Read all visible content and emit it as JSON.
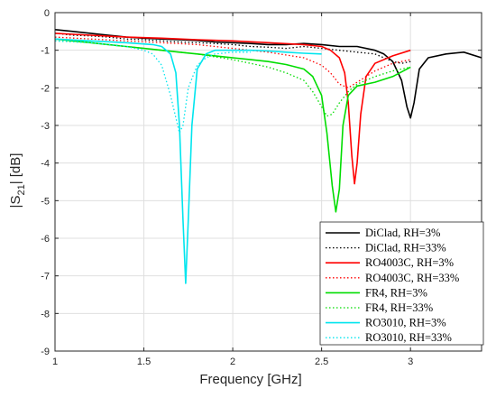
{
  "chart_data": {
    "type": "line",
    "xlabel": "Frequency [GHz]",
    "ylabel_main": "|S",
    "ylabel_sub": "21",
    "ylabel_tail": "| [dB]",
    "xlim": [
      1,
      3.4
    ],
    "ylim": [
      -9,
      0
    ],
    "xticks": [
      1,
      1.5,
      2,
      2.5,
      3
    ],
    "xtick_labels": [
      "1",
      "1.5",
      "2",
      "2.5",
      "3"
    ],
    "yticks": [
      0,
      -1,
      -2,
      -3,
      -4,
      -5,
      -6,
      -7,
      -8,
      -9
    ],
    "ytick_labels": [
      "0",
      "-1",
      "-2",
      "-3",
      "-4",
      "-5",
      "-6",
      "-7",
      "-8",
      "-9"
    ],
    "grid": true,
    "legend_position": "bottom-right",
    "series": [
      {
        "name": "DiClad, RH=3%",
        "color": "#000000",
        "dash": "solid",
        "x": [
          1.0,
          1.1,
          1.2,
          1.3,
          1.4,
          1.5,
          1.6,
          1.7,
          1.8,
          1.9,
          2.0,
          2.1,
          2.2,
          2.3,
          2.4,
          2.5,
          2.6,
          2.7,
          2.8,
          2.85,
          2.9,
          2.95,
          2.98,
          3.0,
          3.02,
          3.05,
          3.1,
          3.2,
          3.3,
          3.4
        ],
        "y": [
          -0.45,
          -0.5,
          -0.55,
          -0.6,
          -0.65,
          -0.68,
          -0.7,
          -0.72,
          -0.74,
          -0.78,
          -0.8,
          -0.82,
          -0.85,
          -0.85,
          -0.82,
          -0.85,
          -0.9,
          -0.9,
          -1.0,
          -1.1,
          -1.3,
          -1.8,
          -2.5,
          -2.8,
          -2.4,
          -1.5,
          -1.2,
          -1.1,
          -1.05,
          -1.2
        ]
      },
      {
        "name": "DiClad, RH=33%",
        "color": "#000000",
        "dash": "dotted",
        "x": [
          1.0,
          1.1,
          1.2,
          1.3,
          1.4,
          1.5,
          1.6,
          1.7,
          1.8,
          1.9,
          2.0,
          2.1,
          2.2,
          2.3,
          2.4,
          2.5,
          2.6,
          2.7,
          2.8,
          2.9,
          2.95,
          3.0
        ],
        "y": [
          -0.55,
          -0.6,
          -0.62,
          -0.65,
          -0.7,
          -0.72,
          -0.75,
          -0.78,
          -0.8,
          -0.82,
          -0.85,
          -0.9,
          -0.92,
          -0.95,
          -0.9,
          -0.95,
          -1.0,
          -1.05,
          -1.1,
          -1.3,
          -1.35,
          -1.3
        ]
      },
      {
        "name": "RO4003C, RH=3%",
        "color": "#ff0000",
        "dash": "solid",
        "x": [
          1.0,
          1.2,
          1.4,
          1.6,
          1.8,
          2.0,
          2.2,
          2.4,
          2.5,
          2.55,
          2.6,
          2.63,
          2.65,
          2.67,
          2.685,
          2.7,
          2.72,
          2.75,
          2.8,
          2.9,
          3.0
        ],
        "y": [
          -0.55,
          -0.6,
          -0.65,
          -0.68,
          -0.72,
          -0.75,
          -0.8,
          -0.85,
          -0.9,
          -1.0,
          -1.2,
          -1.6,
          -2.4,
          -3.8,
          -4.55,
          -4.0,
          -2.7,
          -1.7,
          -1.35,
          -1.15,
          -1.0
        ]
      },
      {
        "name": "RO4003C, RH=33%",
        "color": "#ff0000",
        "dash": "dotted",
        "x": [
          1.0,
          1.2,
          1.4,
          1.6,
          1.8,
          2.0,
          2.2,
          2.4,
          2.5,
          2.55,
          2.6,
          2.65,
          2.7,
          2.8,
          2.9,
          3.0
        ],
        "y": [
          -0.65,
          -0.7,
          -0.75,
          -0.8,
          -0.85,
          -0.95,
          -1.05,
          -1.2,
          -1.4,
          -1.6,
          -1.9,
          -2.0,
          -1.85,
          -1.55,
          -1.35,
          -1.25
        ]
      },
      {
        "name": "FR4, RH=3%",
        "color": "#00dd00",
        "dash": "solid",
        "x": [
          1.0,
          1.1,
          1.2,
          1.3,
          1.4,
          1.5,
          1.6,
          1.7,
          1.8,
          1.9,
          2.0,
          2.1,
          2.2,
          2.3,
          2.4,
          2.45,
          2.5,
          2.53,
          2.56,
          2.58,
          2.6,
          2.62,
          2.65,
          2.7,
          2.8,
          2.9,
          3.0
        ],
        "y": [
          -0.7,
          -0.75,
          -0.8,
          -0.85,
          -0.9,
          -0.95,
          -1.0,
          -1.05,
          -1.1,
          -1.15,
          -1.2,
          -1.25,
          -1.3,
          -1.38,
          -1.5,
          -1.7,
          -2.2,
          -3.2,
          -4.6,
          -5.3,
          -4.7,
          -3.0,
          -2.2,
          -1.95,
          -1.85,
          -1.7,
          -1.45
        ]
      },
      {
        "name": "FR4, RH=33%",
        "color": "#00dd00",
        "dash": "dotted",
        "x": [
          1.0,
          1.2,
          1.4,
          1.6,
          1.8,
          2.0,
          2.1,
          2.2,
          2.3,
          2.4,
          2.45,
          2.5,
          2.53,
          2.56,
          2.6,
          2.65,
          2.7,
          2.8,
          2.9,
          3.0
        ],
        "y": [
          -0.75,
          -0.8,
          -0.9,
          -1.0,
          -1.1,
          -1.25,
          -1.35,
          -1.45,
          -1.6,
          -1.8,
          -2.1,
          -2.5,
          -2.75,
          -2.7,
          -2.4,
          -2.1,
          -1.9,
          -1.7,
          -1.55,
          -1.45
        ]
      },
      {
        "name": "RO3010, RH=3%",
        "color": "#00e5ee",
        "dash": "solid",
        "x": [
          1.0,
          1.2,
          1.4,
          1.55,
          1.6,
          1.65,
          1.68,
          1.7,
          1.72,
          1.735,
          1.75,
          1.77,
          1.8,
          1.85,
          1.9,
          2.0,
          2.1,
          2.2,
          2.3,
          2.4,
          2.5
        ],
        "y": [
          -0.7,
          -0.75,
          -0.8,
          -0.85,
          -0.9,
          -1.1,
          -1.6,
          -3.0,
          -5.5,
          -7.2,
          -5.5,
          -3.0,
          -1.5,
          -1.1,
          -1.0,
          -1.0,
          -1.0,
          -1.02,
          -1.05,
          -1.08,
          -1.1
        ]
      },
      {
        "name": "RO3010, RH=33%",
        "color": "#00e5ee",
        "dash": "dotted",
        "x": [
          1.0,
          1.2,
          1.4,
          1.5,
          1.55,
          1.6,
          1.65,
          1.7,
          1.72,
          1.75,
          1.8,
          1.85,
          1.9,
          2.0,
          2.1
        ],
        "y": [
          -0.75,
          -0.8,
          -0.9,
          -1.0,
          -1.1,
          -1.4,
          -2.2,
          -3.2,
          -3.0,
          -2.0,
          -1.4,
          -1.2,
          -1.1,
          -1.05,
          -1.05
        ]
      }
    ]
  }
}
